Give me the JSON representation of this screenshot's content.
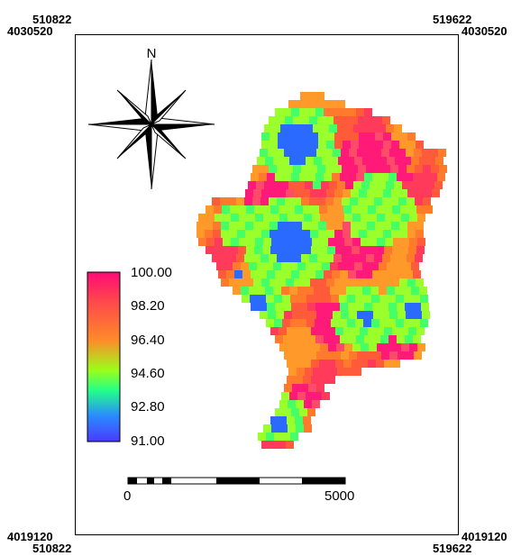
{
  "map": {
    "top_left_x": "510822",
    "top_left_y": "4030520",
    "top_right_x": "519622",
    "top_right_y": "4030520",
    "bottom_left_x": "510822",
    "bottom_left_y": "4019120",
    "bottom_right_x": "519622",
    "bottom_right_y": "4019120"
  },
  "north_arrow": {
    "label": "N",
    "icon": "compass-rose-icon"
  },
  "legend": {
    "ticks": [
      "100.00",
      "98.20",
      "96.40",
      "94.60",
      "92.80",
      "91.00"
    ],
    "color_stops": [
      "#ff0a78",
      "#ff4a4a",
      "#ff8a2a",
      "#9aff1a",
      "#22ff88",
      "#2a8aff",
      "#4a3aff"
    ]
  },
  "scale_bar": {
    "start_label": "0",
    "end_label": "5000"
  }
}
